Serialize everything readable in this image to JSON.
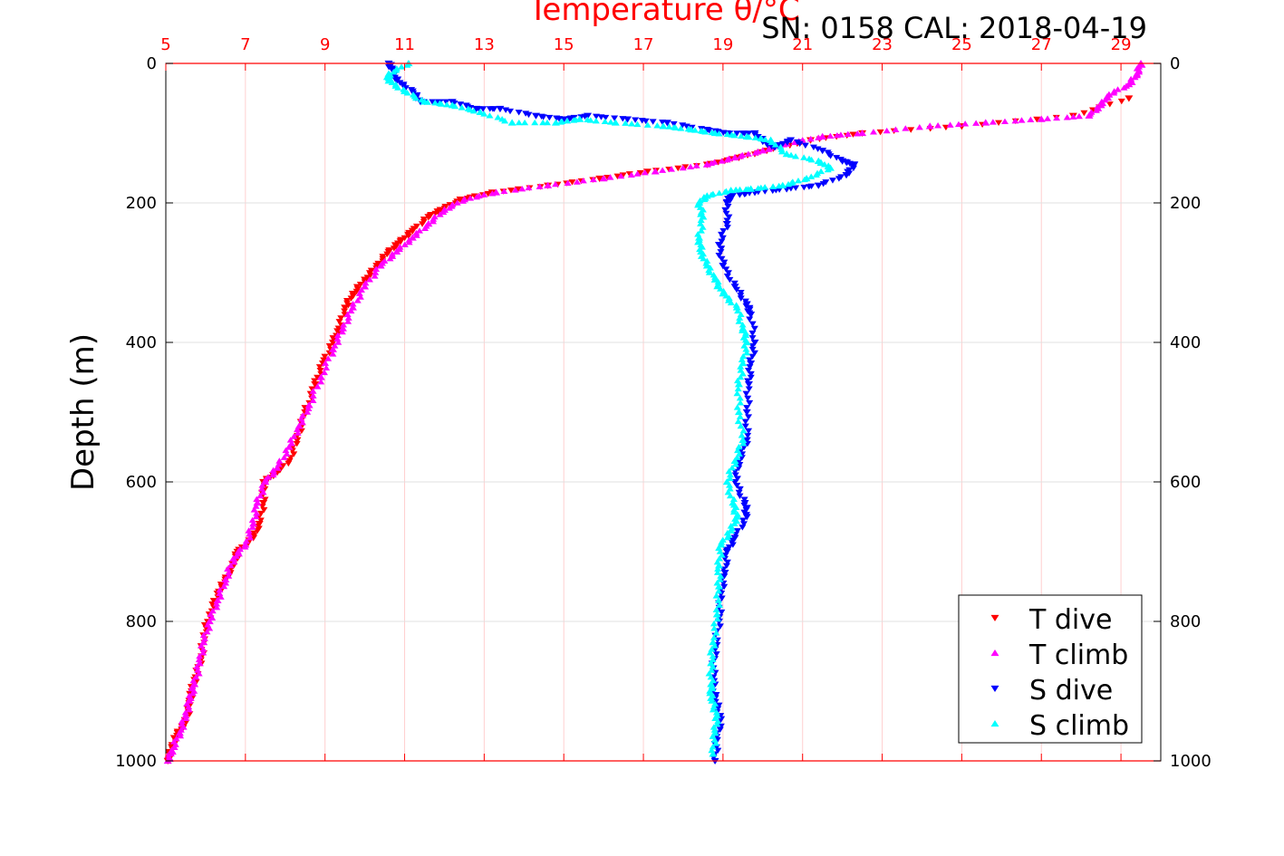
{
  "chart_data": {
    "type": "scatter",
    "title": "Temperature θ/°C",
    "subtitle": "SN: 0158  CAL: 2018-04-19",
    "ylabel": "Depth (m)",
    "xlim": [
      5,
      30
    ],
    "ylim": [
      0,
      1000
    ],
    "y_reversed": true,
    "x_ticks": [
      "5",
      "7",
      "9",
      "11",
      "13",
      "15",
      "17",
      "19",
      "21",
      "23",
      "25",
      "27",
      "29"
    ],
    "y_ticks_left": [
      "0",
      "200",
      "400",
      "600",
      "800",
      "1000"
    ],
    "y_ticks_right": [
      "0",
      "200",
      "400",
      "600",
      "800",
      "1000"
    ],
    "grid": true,
    "legend": "bottom-right",
    "colors": {
      "axis": "#ff0000",
      "text": "#000000",
      "grid": "#e0e0e0",
      "xgrid": "#ffd0d0"
    },
    "series": [
      {
        "name": "T dive",
        "marker": "triangle-down",
        "color": "#ff0000",
        "points": [
          [
            29.2,
            50
          ],
          [
            27.8,
            75
          ],
          [
            25.0,
            90
          ],
          [
            22.5,
            100
          ],
          [
            21.2,
            110
          ],
          [
            20.1,
            125
          ],
          [
            19.4,
            135
          ],
          [
            18.6,
            145
          ],
          [
            17.1,
            155
          ],
          [
            15.9,
            165
          ],
          [
            14.6,
            175
          ],
          [
            13.2,
            185
          ],
          [
            12.4,
            195
          ],
          [
            11.9,
            210
          ],
          [
            11.6,
            220
          ],
          [
            11.2,
            240
          ],
          [
            10.9,
            255
          ],
          [
            10.6,
            270
          ],
          [
            10.3,
            290
          ],
          [
            10.0,
            310
          ],
          [
            9.7,
            330
          ],
          [
            9.5,
            350
          ],
          [
            9.35,
            380
          ],
          [
            9.2,
            400
          ],
          [
            8.95,
            430
          ],
          [
            8.75,
            460
          ],
          [
            8.5,
            500
          ],
          [
            8.3,
            540
          ],
          [
            8.1,
            570
          ],
          [
            7.7,
            590
          ],
          [
            7.45,
            600
          ],
          [
            7.45,
            630
          ],
          [
            7.35,
            660
          ],
          [
            7.2,
            680
          ],
          [
            6.8,
            700
          ],
          [
            6.7,
            720
          ],
          [
            6.5,
            740
          ],
          [
            6.3,
            760
          ],
          [
            6.1,
            790
          ],
          [
            5.95,
            820
          ],
          [
            5.9,
            850
          ],
          [
            5.75,
            880
          ],
          [
            5.65,
            900
          ],
          [
            5.6,
            920
          ],
          [
            5.5,
            945
          ],
          [
            5.3,
            960
          ],
          [
            5.15,
            980
          ],
          [
            5.05,
            1000
          ]
        ]
      },
      {
        "name": "T climb",
        "marker": "triangle-up",
        "color": "#ff00ff",
        "points": [
          [
            29.5,
            0
          ],
          [
            29.4,
            15
          ],
          [
            29.2,
            30
          ],
          [
            28.7,
            45
          ],
          [
            28.5,
            60
          ],
          [
            28.2,
            75
          ],
          [
            27.0,
            80
          ],
          [
            25.6,
            85
          ],
          [
            24.2,
            90
          ],
          [
            22.5,
            100
          ],
          [
            21.5,
            105
          ],
          [
            20.6,
            115
          ],
          [
            20.0,
            125
          ],
          [
            19.3,
            135
          ],
          [
            18.6,
            145
          ],
          [
            17.3,
            155
          ],
          [
            16.0,
            165
          ],
          [
            14.6,
            175
          ],
          [
            13.3,
            185
          ],
          [
            12.5,
            195
          ],
          [
            12.0,
            210
          ],
          [
            11.6,
            230
          ],
          [
            11.2,
            250
          ],
          [
            10.8,
            270
          ],
          [
            10.4,
            290
          ],
          [
            10.0,
            320
          ],
          [
            9.7,
            350
          ],
          [
            9.45,
            380
          ],
          [
            9.2,
            410
          ],
          [
            8.9,
            450
          ],
          [
            8.6,
            490
          ],
          [
            8.35,
            520
          ],
          [
            8.1,
            550
          ],
          [
            7.8,
            580
          ],
          [
            7.5,
            600
          ],
          [
            7.3,
            630
          ],
          [
            7.2,
            660
          ],
          [
            7.0,
            690
          ],
          [
            6.7,
            710
          ],
          [
            6.5,
            740
          ],
          [
            6.3,
            770
          ],
          [
            6.1,
            800
          ],
          [
            5.95,
            830
          ],
          [
            5.85,
            860
          ],
          [
            5.72,
            890
          ],
          [
            5.62,
            910
          ],
          [
            5.5,
            935
          ],
          [
            5.35,
            960
          ],
          [
            5.15,
            985
          ],
          [
            5.05,
            1000
          ]
        ]
      },
      {
        "name": "S dive",
        "marker": "triangle-down",
        "color": "#0000ff",
        "points": [
          [
            10.6,
            0
          ],
          [
            10.7,
            10
          ],
          [
            10.8,
            25
          ],
          [
            11.2,
            40
          ],
          [
            11.4,
            55
          ],
          [
            12.2,
            55
          ],
          [
            12.8,
            65
          ],
          [
            13.4,
            65
          ],
          [
            14.3,
            75
          ],
          [
            15.0,
            80
          ],
          [
            15.6,
            75
          ],
          [
            16.6,
            80
          ],
          [
            17.6,
            85
          ],
          [
            18.6,
            95
          ],
          [
            19.1,
            100
          ],
          [
            19.8,
            100
          ],
          [
            20.1,
            115
          ],
          [
            20.3,
            120
          ],
          [
            20.7,
            110
          ],
          [
            21.5,
            125
          ],
          [
            22.0,
            140
          ],
          [
            22.3,
            145
          ],
          [
            22.1,
            160
          ],
          [
            21.4,
            175
          ],
          [
            20.6,
            180
          ],
          [
            19.8,
            185
          ],
          [
            19.2,
            190
          ],
          [
            19.1,
            200
          ],
          [
            19.1,
            230
          ],
          [
            18.9,
            260
          ],
          [
            19.0,
            290
          ],
          [
            19.3,
            320
          ],
          [
            19.6,
            345
          ],
          [
            19.7,
            360
          ],
          [
            19.8,
            400
          ],
          [
            19.7,
            430
          ],
          [
            19.65,
            460
          ],
          [
            19.6,
            500
          ],
          [
            19.6,
            540
          ],
          [
            19.4,
            570
          ],
          [
            19.3,
            600
          ],
          [
            19.55,
            630
          ],
          [
            19.6,
            650
          ],
          [
            19.3,
            680
          ],
          [
            19.1,
            700
          ],
          [
            19.05,
            730
          ],
          [
            18.95,
            760
          ],
          [
            18.9,
            800
          ],
          [
            18.8,
            840
          ],
          [
            18.75,
            880
          ],
          [
            18.8,
            910
          ],
          [
            18.95,
            940
          ],
          [
            18.85,
            970
          ],
          [
            18.8,
            1000
          ]
        ]
      },
      {
        "name": "S climb",
        "marker": "triangle-up",
        "color": "#00ffff",
        "points": [
          [
            11.1,
            0
          ],
          [
            10.6,
            15
          ],
          [
            10.6,
            25
          ],
          [
            11.0,
            40
          ],
          [
            11.5,
            55
          ],
          [
            12.2,
            60
          ],
          [
            12.9,
            70
          ],
          [
            13.7,
            85
          ],
          [
            14.8,
            85
          ],
          [
            15.4,
            80
          ],
          [
            16.3,
            85
          ],
          [
            17.5,
            90
          ],
          [
            18.2,
            95
          ],
          [
            18.8,
            100
          ],
          [
            19.6,
            105
          ],
          [
            20.2,
            110
          ],
          [
            20.6,
            130
          ],
          [
            21.4,
            140
          ],
          [
            21.7,
            150
          ],
          [
            21.1,
            165
          ],
          [
            20.5,
            175
          ],
          [
            19.7,
            180
          ],
          [
            19.2,
            182
          ],
          [
            18.6,
            190
          ],
          [
            18.4,
            200
          ],
          [
            18.5,
            220
          ],
          [
            18.4,
            250
          ],
          [
            18.45,
            270
          ],
          [
            18.6,
            290
          ],
          [
            18.8,
            310
          ],
          [
            19.0,
            330
          ],
          [
            19.35,
            350
          ],
          [
            19.5,
            380
          ],
          [
            19.6,
            400
          ],
          [
            19.5,
            430
          ],
          [
            19.4,
            460
          ],
          [
            19.4,
            500
          ],
          [
            19.5,
            540
          ],
          [
            19.3,
            570
          ],
          [
            19.1,
            600
          ],
          [
            19.25,
            630
          ],
          [
            19.35,
            650
          ],
          [
            19.2,
            670
          ],
          [
            18.95,
            690
          ],
          [
            18.9,
            720
          ],
          [
            18.9,
            750
          ],
          [
            18.85,
            790
          ],
          [
            18.75,
            830
          ],
          [
            18.7,
            860
          ],
          [
            18.7,
            890
          ],
          [
            18.7,
            910
          ],
          [
            18.85,
            935
          ],
          [
            18.8,
            960
          ],
          [
            18.75,
            990
          ]
        ]
      }
    ]
  }
}
